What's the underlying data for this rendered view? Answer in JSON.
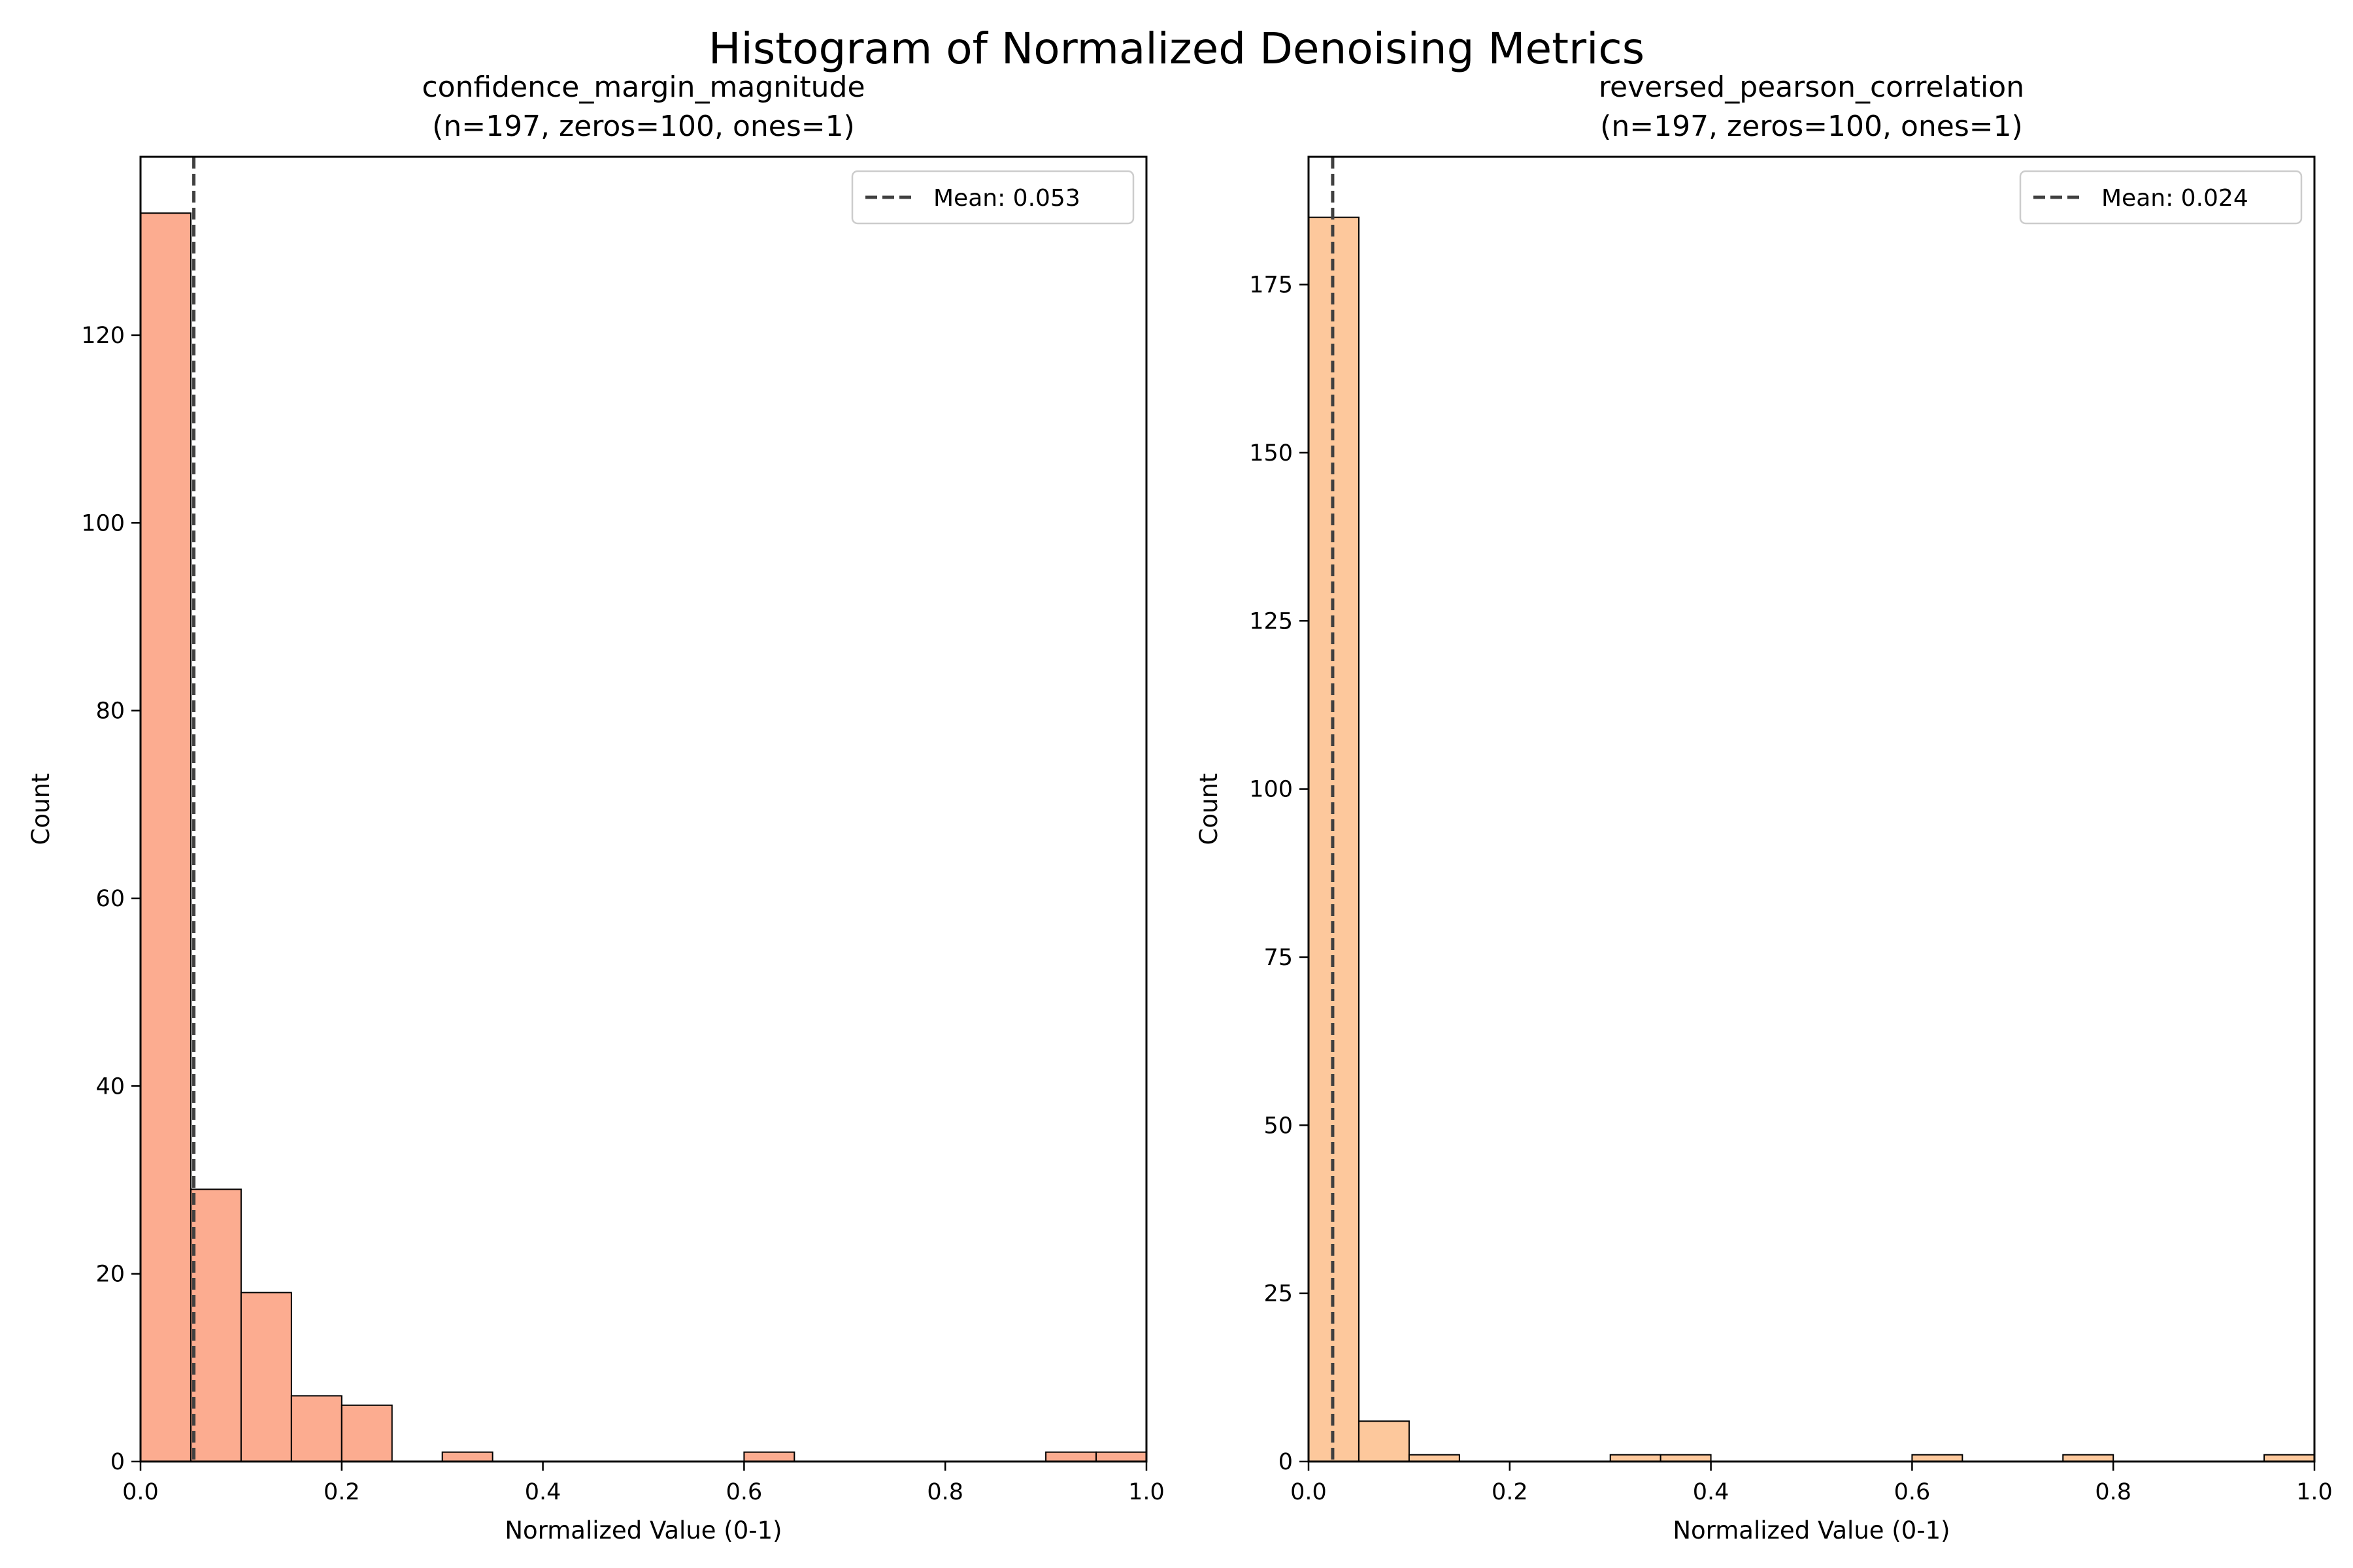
{
  "figure": {
    "suptitle": "Histogram of Normalized Denoising Metrics"
  },
  "chart_data": [
    {
      "type": "bar",
      "subtype": "histogram",
      "title": "confidence_margin_magnitude",
      "subtitle": "(n=197, zeros=100, ones=1)",
      "xlabel": "Normalized Value (0-1)",
      "ylabel": "Count",
      "xlim": [
        0,
        1
      ],
      "ylim": [
        0,
        139
      ],
      "xticks": [
        0.0,
        0.2,
        0.4,
        0.6,
        0.8,
        1.0
      ],
      "xtick_labels": [
        "0.0",
        "0.2",
        "0.4",
        "0.6",
        "0.8",
        "1.0"
      ],
      "yticks": [
        0,
        20,
        40,
        60,
        80,
        100,
        120
      ],
      "ytick_labels": [
        "0",
        "20",
        "40",
        "60",
        "80",
        "100",
        "120"
      ],
      "bin_width": 0.05,
      "bins": [
        {
          "x0": 0.0,
          "x1": 0.05,
          "count": 133
        },
        {
          "x0": 0.05,
          "x1": 0.1,
          "count": 29
        },
        {
          "x0": 0.1,
          "x1": 0.15,
          "count": 18
        },
        {
          "x0": 0.15,
          "x1": 0.2,
          "count": 7
        },
        {
          "x0": 0.2,
          "x1": 0.25,
          "count": 6
        },
        {
          "x0": 0.3,
          "x1": 0.35,
          "count": 1
        },
        {
          "x0": 0.6,
          "x1": 0.65,
          "count": 1
        },
        {
          "x0": 0.9,
          "x1": 0.95,
          "count": 1
        },
        {
          "x0": 0.95,
          "x1": 1.0,
          "count": 1
        }
      ],
      "bar_color": "#fcac90",
      "mean": 0.053,
      "legend": {
        "label": "Mean: 0.053",
        "placement": "upper right"
      },
      "grid": false
    },
    {
      "type": "bar",
      "subtype": "histogram",
      "title": "reversed_pearson_correlation",
      "subtitle": "(n=197, zeros=100, ones=1)",
      "xlabel": "Normalized Value (0-1)",
      "ylabel": "Count",
      "xlim": [
        0,
        1
      ],
      "ylim": [
        0,
        194
      ],
      "xticks": [
        0.0,
        0.2,
        0.4,
        0.6,
        0.8,
        1.0
      ],
      "xtick_labels": [
        "0.0",
        "0.2",
        "0.4",
        "0.6",
        "0.8",
        "1.0"
      ],
      "yticks": [
        0,
        25,
        50,
        75,
        100,
        125,
        150,
        175
      ],
      "ytick_labels": [
        "0",
        "25",
        "50",
        "75",
        "100",
        "125",
        "150",
        "175"
      ],
      "bin_width": 0.05,
      "bins": [
        {
          "x0": 0.0,
          "x1": 0.05,
          "count": 185
        },
        {
          "x0": 0.05,
          "x1": 0.1,
          "count": 6
        },
        {
          "x0": 0.1,
          "x1": 0.15,
          "count": 1
        },
        {
          "x0": 0.3,
          "x1": 0.35,
          "count": 1
        },
        {
          "x0": 0.35,
          "x1": 0.4,
          "count": 1
        },
        {
          "x0": 0.6,
          "x1": 0.65,
          "count": 1
        },
        {
          "x0": 0.75,
          "x1": 0.8,
          "count": 1
        },
        {
          "x0": 0.95,
          "x1": 1.0,
          "count": 1
        }
      ],
      "bar_color": "#fdc89c",
      "mean": 0.024,
      "legend": {
        "label": "Mean: 0.024",
        "placement": "upper right"
      },
      "grid": false
    }
  ]
}
